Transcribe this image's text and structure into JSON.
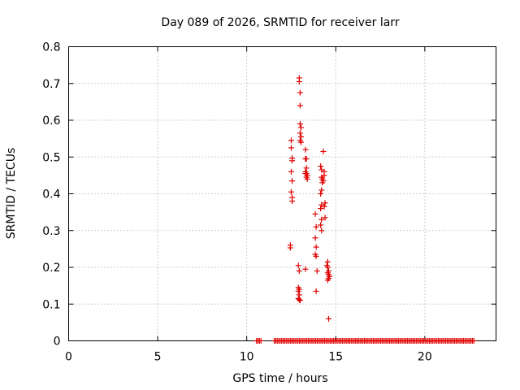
{
  "chart_data": {
    "type": "scatter",
    "title": "Day 089 of 2026, SRMTID for receiver larr",
    "xlabel": "GPS time / hours",
    "ylabel": "SRMTID / TECUs",
    "xlim": [
      0,
      24
    ],
    "ylim": [
      0,
      0.8
    ],
    "xticks": [
      "0",
      "5",
      "10",
      "15",
      "20"
    ],
    "yticks": [
      "0",
      "0.1",
      "0.2",
      "0.3",
      "0.4",
      "0.5",
      "0.6",
      "0.7",
      "0.8"
    ],
    "grid": true,
    "marker_color": "#e00000",
    "series": [
      {
        "name": "SRMTID",
        "points": [
          [
            12.5,
            0.545
          ],
          [
            12.5,
            0.525
          ],
          [
            12.55,
            0.497
          ],
          [
            12.55,
            0.49
          ],
          [
            12.5,
            0.46
          ],
          [
            12.55,
            0.435
          ],
          [
            12.5,
            0.405
          ],
          [
            12.55,
            0.39
          ],
          [
            12.55,
            0.38
          ],
          [
            12.45,
            0.26
          ],
          [
            12.45,
            0.253
          ],
          [
            12.95,
            0.715
          ],
          [
            12.95,
            0.705
          ],
          [
            13.0,
            0.675
          ],
          [
            13.0,
            0.64
          ],
          [
            13.0,
            0.59
          ],
          [
            13.05,
            0.58
          ],
          [
            13.0,
            0.565
          ],
          [
            13.05,
            0.555
          ],
          [
            13.0,
            0.545
          ],
          [
            13.05,
            0.54
          ],
          [
            12.9,
            0.205
          ],
          [
            12.95,
            0.19
          ],
          [
            12.9,
            0.145
          ],
          [
            12.95,
            0.14
          ],
          [
            12.9,
            0.135
          ],
          [
            12.95,
            0.125
          ],
          [
            12.9,
            0.115
          ],
          [
            12.95,
            0.112
          ],
          [
            13.0,
            0.11
          ],
          [
            13.3,
            0.52
          ],
          [
            13.35,
            0.495
          ],
          [
            13.3,
            0.495
          ],
          [
            13.35,
            0.47
          ],
          [
            13.3,
            0.46
          ],
          [
            13.35,
            0.455
          ],
          [
            13.4,
            0.45
          ],
          [
            13.35,
            0.445
          ],
          [
            13.4,
            0.44
          ],
          [
            13.3,
            0.455
          ],
          [
            13.3,
            0.195
          ],
          [
            13.85,
            0.345
          ],
          [
            13.9,
            0.31
          ],
          [
            13.85,
            0.28
          ],
          [
            13.9,
            0.255
          ],
          [
            13.85,
            0.235
          ],
          [
            13.9,
            0.23
          ],
          [
            13.95,
            0.19
          ],
          [
            13.9,
            0.135
          ],
          [
            14.15,
            0.475
          ],
          [
            14.2,
            0.465
          ],
          [
            14.2,
            0.445
          ],
          [
            14.25,
            0.44
          ],
          [
            14.25,
            0.43
          ],
          [
            14.2,
            0.41
          ],
          [
            14.15,
            0.4
          ],
          [
            14.2,
            0.37
          ],
          [
            14.15,
            0.36
          ],
          [
            14.2,
            0.33
          ],
          [
            14.15,
            0.315
          ],
          [
            14.2,
            0.3
          ],
          [
            14.3,
            0.515
          ],
          [
            14.35,
            0.46
          ],
          [
            14.35,
            0.45
          ],
          [
            14.3,
            0.435
          ],
          [
            14.4,
            0.375
          ],
          [
            14.35,
            0.365
          ],
          [
            14.4,
            0.335
          ],
          [
            14.55,
            0.215
          ],
          [
            14.5,
            0.205
          ],
          [
            14.55,
            0.2
          ],
          [
            14.6,
            0.19
          ],
          [
            14.55,
            0.185
          ],
          [
            14.6,
            0.18
          ],
          [
            14.65,
            0.175
          ],
          [
            14.6,
            0.17
          ],
          [
            14.55,
            0.165
          ],
          [
            14.6,
            0.06
          ]
        ]
      }
    ],
    "zero_series_x_ranges": [
      [
        10.55,
        10.8
      ],
      [
        11.55,
        22.8
      ]
    ]
  }
}
